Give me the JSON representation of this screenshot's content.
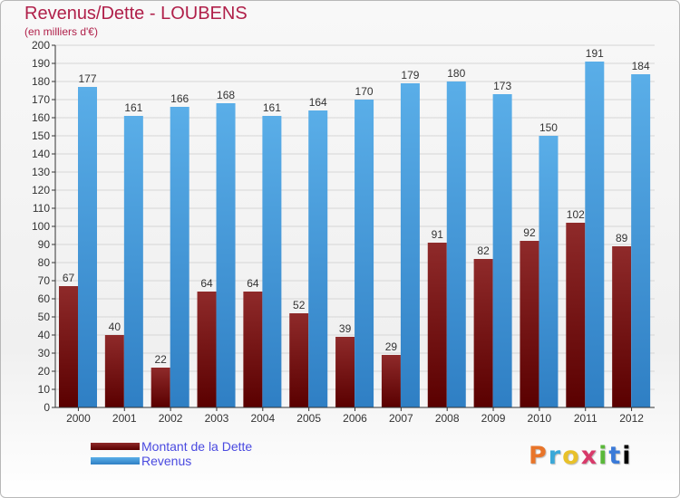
{
  "header": {
    "title": "Revenus/Dette - LOUBENS",
    "subtitle": "(en milliers d'€)"
  },
  "colors": {
    "dette": "#7a1a1a",
    "revenus": "#4da6e8",
    "title": "#b0204a",
    "legend_text": "#4a4ae0"
  },
  "legend": [
    {
      "label": "Montant de la Dette"
    },
    {
      "label": "Revenus"
    }
  ],
  "logo": {
    "text": "Proxiti"
  },
  "chart_data": {
    "type": "bar",
    "title": "Revenus/Dette - LOUBENS",
    "subtitle": "(en milliers d'€)",
    "categories": [
      "2000",
      "2001",
      "2002",
      "2003",
      "2004",
      "2005",
      "2006",
      "2007",
      "2008",
      "2009",
      "2010",
      "2011",
      "2012"
    ],
    "series": [
      {
        "name": "Montant de la Dette",
        "values": [
          67,
          40,
          22,
          64,
          64,
          52,
          39,
          29,
          91,
          82,
          92,
          102,
          89
        ]
      },
      {
        "name": "Revenus",
        "values": [
          177,
          161,
          166,
          168,
          161,
          164,
          170,
          179,
          180,
          173,
          150,
          191,
          184
        ]
      }
    ],
    "ylim": [
      0,
      200
    ],
    "ytick_step": 10,
    "grid": true,
    "legend_position": "bottom-left"
  }
}
